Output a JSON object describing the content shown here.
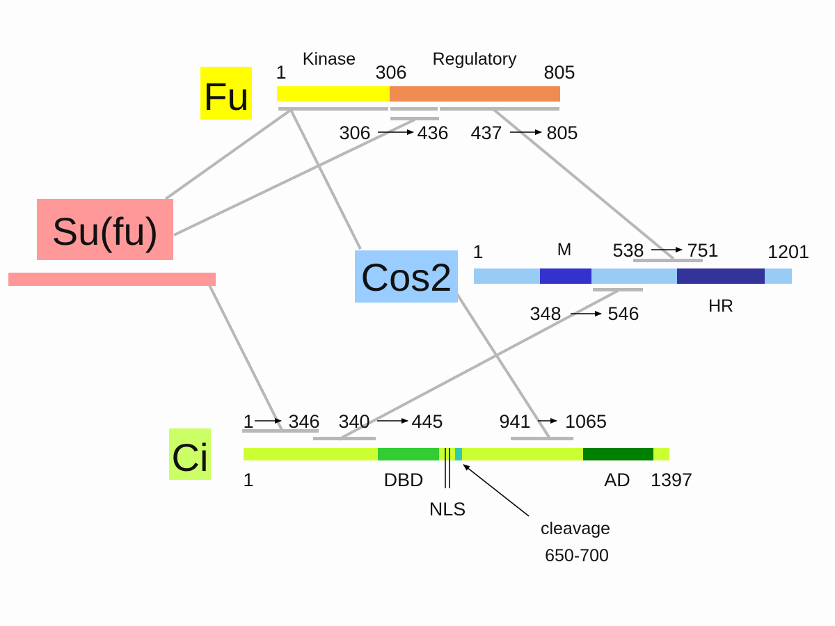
{
  "colors": {
    "fu_box": "#ffff00",
    "fu_kinase": "#ffff00",
    "fu_regulatory": "#f08c50",
    "sufu": "#ff9999",
    "cos2_box": "#99ccff",
    "cos2_bar": "#99ccf5",
    "cos2_M": "#3333cc",
    "cos2_HR": "#333399",
    "ci_box": "#ccff66",
    "ci_bar": "#ccff33",
    "ci_DBD": "#33cc33",
    "ci_NLS": "#33ccaa",
    "ci_AD": "#008000",
    "connector": "#b8b8b8"
  },
  "proteins": {
    "fu": {
      "name": "Fu",
      "start": "1",
      "kinase_label": "Kinase",
      "kinase_end": "306",
      "regulatory_label": "Regulatory",
      "end": "805"
    },
    "sufu": {
      "name": "Su(fu)"
    },
    "cos2": {
      "name": "Cos2",
      "start": "1",
      "m_label": "M",
      "hr_label": "HR",
      "end": "1201"
    },
    "ci": {
      "name": "Ci",
      "start": "1",
      "dbd_label": "DBD",
      "ad_label": "AD",
      "end": "1397",
      "nls_label": "NLS",
      "cleavage_label": "cleavage",
      "cleavage_range": "650-700"
    }
  },
  "fragments": {
    "fu_a": {
      "from": "306",
      "to": "436"
    },
    "fu_b": {
      "from": "437",
      "to": "805"
    },
    "cos2_a": {
      "from": "538",
      "to": "751"
    },
    "cos2_b": {
      "from": "348",
      "to": "546"
    },
    "ci_a": {
      "from": "1",
      "to": "346"
    },
    "ci_b": {
      "from": "340",
      "to": "445"
    },
    "ci_c": {
      "from": "941",
      "to": "1065"
    }
  }
}
